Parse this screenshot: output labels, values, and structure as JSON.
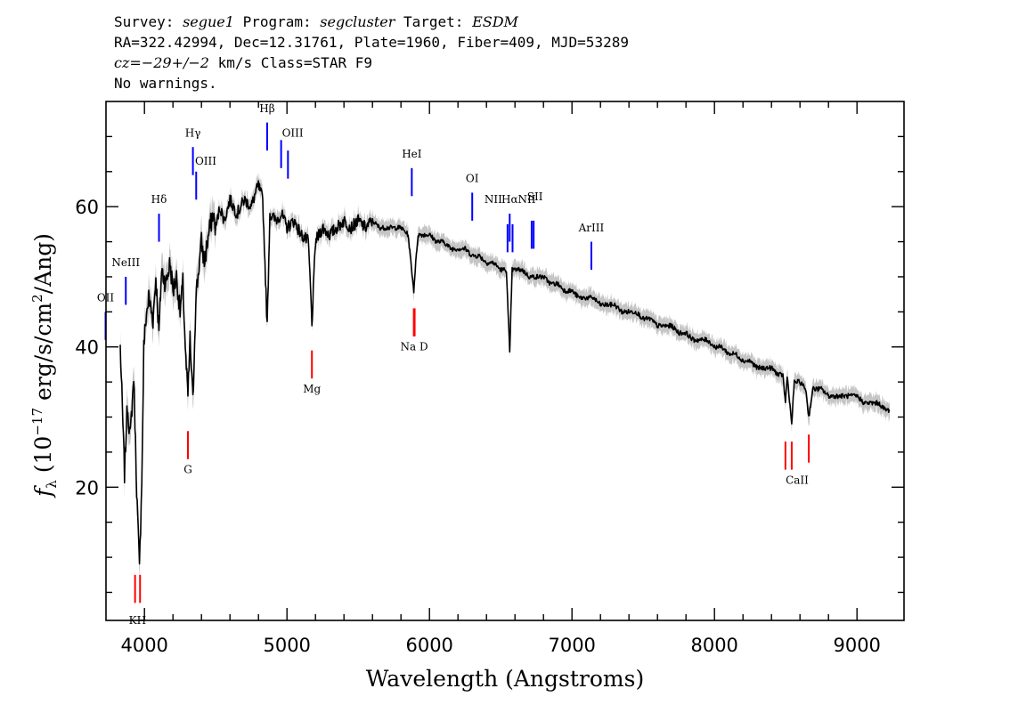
{
  "header": {
    "line1": {
      "survey_label": "Survey:",
      "survey": "segue1",
      "program_label": "Program:",
      "program": "segcluster",
      "target_label": "Target:",
      "target": "ESDM"
    },
    "line2": "RA=322.42994, Dec=12.31761, Plate=1960, Fiber=409, MJD=53289",
    "line3": {
      "cz_value": "cz=−29+/−2",
      "cz_rest": " km/s Class=STAR F9"
    },
    "line4": "No warnings."
  },
  "chart_data": {
    "type": "line",
    "xlabel": "Wavelength (Angstroms)",
    "ylabel": "f_λ (10^-17 erg/s/cm²/Ang)",
    "ylabel_parts": {
      "f": "f",
      "sub": "λ",
      "pre": "(10",
      "exp": "−17",
      "mid": " erg/s/cm",
      "exp2": "2",
      "post": "/Ang)"
    },
    "xlim": [
      3730,
      9330
    ],
    "ylim": [
      1,
      75
    ],
    "x_ticks": [
      4000,
      5000,
      6000,
      7000,
      8000,
      9000
    ],
    "y_ticks": [
      20,
      40,
      60
    ],
    "grid": false,
    "series": [
      {
        "color": "#000000",
        "error_color": "#bfbfbf",
        "points": [
          [
            3830,
            40
          ],
          [
            3860,
            22
          ],
          [
            3880,
            32
          ],
          [
            3900,
            27
          ],
          [
            3925,
            36
          ],
          [
            3945,
            20
          ],
          [
            3965,
            8
          ],
          [
            3985,
            25
          ],
          [
            3995,
            40
          ],
          [
            4010,
            44
          ],
          [
            4030,
            47
          ],
          [
            4060,
            44
          ],
          [
            4080,
            50
          ],
          [
            4102,
            42
          ],
          [
            4120,
            51
          ],
          [
            4150,
            49
          ],
          [
            4180,
            52
          ],
          [
            4200,
            48
          ],
          [
            4225,
            50
          ],
          [
            4250,
            45
          ],
          [
            4270,
            49
          ],
          [
            4290,
            38
          ],
          [
            4305,
            33
          ],
          [
            4320,
            41
          ],
          [
            4340,
            32
          ],
          [
            4360,
            47
          ],
          [
            4380,
            51
          ],
          [
            4400,
            55
          ],
          [
            4420,
            52
          ],
          [
            4450,
            56
          ],
          [
            4480,
            59
          ],
          [
            4500,
            57
          ],
          [
            4530,
            60
          ],
          [
            4560,
            58
          ],
          [
            4600,
            61
          ],
          [
            4650,
            59
          ],
          [
            4700,
            61
          ],
          [
            4750,
            60
          ],
          [
            4780,
            62
          ],
          [
            4800,
            63
          ],
          [
            4830,
            61
          ],
          [
            4861,
            43
          ],
          [
            4880,
            59
          ],
          [
            4920,
            58
          ],
          [
            4960,
            59
          ],
          [
            5000,
            57
          ],
          [
            5050,
            58
          ],
          [
            5100,
            56
          ],
          [
            5150,
            55
          ],
          [
            5168,
            47
          ],
          [
            5175,
            43
          ],
          [
            5185,
            48
          ],
          [
            5200,
            55
          ],
          [
            5250,
            57
          ],
          [
            5300,
            56
          ],
          [
            5350,
            57
          ],
          [
            5400,
            58
          ],
          [
            5450,
            57
          ],
          [
            5500,
            58
          ],
          [
            5550,
            57
          ],
          [
            5600,
            58
          ],
          [
            5650,
            57
          ],
          [
            5700,
            57
          ],
          [
            5750,
            57
          ],
          [
            5800,
            57
          ],
          [
            5850,
            56
          ],
          [
            5890,
            48
          ],
          [
            5896,
            50
          ],
          [
            5920,
            56
          ],
          [
            5950,
            56
          ],
          [
            6000,
            56
          ],
          [
            6050,
            55
          ],
          [
            6100,
            55
          ],
          [
            6150,
            54
          ],
          [
            6200,
            54
          ],
          [
            6250,
            54
          ],
          [
            6300,
            53
          ],
          [
            6350,
            53
          ],
          [
            6400,
            52
          ],
          [
            6450,
            52
          ],
          [
            6500,
            51
          ],
          [
            6540,
            51
          ],
          [
            6563,
            39
          ],
          [
            6580,
            51
          ],
          [
            6600,
            51
          ],
          [
            6650,
            51
          ],
          [
            6700,
            50
          ],
          [
            6750,
            50
          ],
          [
            6800,
            50
          ],
          [
            6850,
            49
          ],
          [
            6900,
            49
          ],
          [
            6950,
            48
          ],
          [
            7000,
            48
          ],
          [
            7050,
            47
          ],
          [
            7100,
            47
          ],
          [
            7150,
            47
          ],
          [
            7200,
            46
          ],
          [
            7250,
            46
          ],
          [
            7300,
            46
          ],
          [
            7350,
            45
          ],
          [
            7400,
            45
          ],
          [
            7450,
            45
          ],
          [
            7500,
            44
          ],
          [
            7550,
            44
          ],
          [
            7600,
            43
          ],
          [
            7650,
            43
          ],
          [
            7700,
            43
          ],
          [
            7750,
            42
          ],
          [
            7800,
            42
          ],
          [
            7850,
            41
          ],
          [
            7900,
            41
          ],
          [
            7950,
            41
          ],
          [
            8000,
            40
          ],
          [
            8050,
            40
          ],
          [
            8100,
            39
          ],
          [
            8150,
            39
          ],
          [
            8200,
            38
          ],
          [
            8250,
            38
          ],
          [
            8300,
            37
          ],
          [
            8350,
            37
          ],
          [
            8400,
            37
          ],
          [
            8450,
            36
          ],
          [
            8480,
            36
          ],
          [
            8498,
            32
          ],
          [
            8510,
            36
          ],
          [
            8542,
            29
          ],
          [
            8560,
            35
          ],
          [
            8600,
            35
          ],
          [
            8640,
            34
          ],
          [
            8662,
            30
          ],
          [
            8690,
            34
          ],
          [
            8750,
            34
          ],
          [
            8800,
            33
          ],
          [
            8850,
            33
          ],
          [
            8900,
            33
          ],
          [
            8950,
            33
          ],
          [
            9000,
            33
          ],
          [
            9050,
            32
          ],
          [
            9100,
            32
          ],
          [
            9150,
            32
          ],
          [
            9200,
            31
          ],
          [
            9230,
            31
          ]
        ]
      }
    ],
    "emission_lines": [
      {
        "name": "OII",
        "x": 3727,
        "y_top": 45,
        "y_bot": 41
      },
      {
        "name": "NeIII",
        "x": 3869,
        "y_top": 50,
        "y_bot": 46
      },
      {
        "name": "Hδ",
        "x": 4102,
        "y_top": 59,
        "y_bot": 55
      },
      {
        "name": "Hγ",
        "x": 4340,
        "y_top": 68.5,
        "y_bot": 64.5
      },
      {
        "name": "OIII",
        "x": 4363,
        "y_top": 65,
        "y_bot": 61
      },
      {
        "name": "Hβ",
        "x": 4861,
        "y_top": 72,
        "y_bot": 68
      },
      {
        "name": "OIII",
        "x": 4959,
        "y_top": 69.5,
        "y_bot": 65.5
      },
      {
        "name": "OIII",
        "x": 5007,
        "y_top": 68,
        "y_bot": 64
      },
      {
        "name": "HeI",
        "x": 5876,
        "y_top": 65.5,
        "y_bot": 61.5
      },
      {
        "name": "OI",
        "x": 6300,
        "y_top": 62,
        "y_bot": 58
      },
      {
        "name": "NII",
        "x": 6548,
        "y_top": 57.5,
        "y_bot": 53.5
      },
      {
        "name": "Hα",
        "x": 6563,
        "y_top": 59,
        "y_bot": 55
      },
      {
        "name": "NII",
        "x": 6583,
        "y_top": 57.5,
        "y_bot": 53.5
      },
      {
        "name": "SII",
        "x": 6717,
        "y_top": 58,
        "y_bot": 54
      },
      {
        "name": "SII",
        "x": 6731,
        "y_top": 58,
        "y_bot": 54
      },
      {
        "name": "ArIII",
        "x": 7136,
        "y_top": 55,
        "y_bot": 51
      }
    ],
    "absorption_lines": [
      {
        "name": "K",
        "x": 3934,
        "y_top": 7.5,
        "y_bot": 3.5
      },
      {
        "name": "H",
        "x": 3969,
        "y_top": 7.5,
        "y_bot": 3.5
      },
      {
        "name": "G",
        "x": 4305,
        "y_top": 28,
        "y_bot": 24
      },
      {
        "name": "Mg",
        "x": 5175,
        "y_top": 39.5,
        "y_bot": 35.5
      },
      {
        "name": "Na",
        "x": 5890,
        "y_top": 45.5,
        "y_bot": 41.5
      },
      {
        "name": "D",
        "x": 5896,
        "y_top": 45.5,
        "y_bot": 41.5
      },
      {
        "name": "CaII",
        "x": 8498,
        "y_top": 26.5,
        "y_bot": 22.5
      },
      {
        "name": "CaII",
        "x": 8542,
        "y_top": 26.5,
        "y_bot": 22.5
      },
      {
        "name": "CaII",
        "x": 8662,
        "y_top": 27.5,
        "y_bot": 23.5
      }
    ],
    "line_labels": [
      {
        "text": "OII",
        "x": 3727,
        "y": 46.5,
        "kind": "emission"
      },
      {
        "text": "NeIII",
        "x": 3869,
        "y": 51.5,
        "kind": "emission"
      },
      {
        "text": "Hδ",
        "x": 4102,
        "y": 60.5,
        "kind": "emission"
      },
      {
        "text": "Hγ",
        "x": 4340,
        "y": 70,
        "kind": "emission"
      },
      {
        "text": "OIII",
        "x": 4430,
        "y": 66,
        "kind": "emission"
      },
      {
        "text": "Hβ",
        "x": 4861,
        "y": 73.5,
        "kind": "emission"
      },
      {
        "text": "OIII",
        "x": 5040,
        "y": 70,
        "kind": "emission"
      },
      {
        "text": "HeI",
        "x": 5876,
        "y": 67,
        "kind": "emission"
      },
      {
        "text": "OI",
        "x": 6300,
        "y": 63.5,
        "kind": "emission"
      },
      {
        "text": "NII",
        "x": 6448,
        "y": 60.5,
        "kind": "emission"
      },
      {
        "text": "Hα",
        "x": 6563,
        "y": 60.5,
        "kind": "emission"
      },
      {
        "text": "NII",
        "x": 6683,
        "y": 60.5,
        "kind": "emission"
      },
      {
        "text": "SII",
        "x": 6740,
        "y": 60.9,
        "kind": "emission"
      },
      {
        "text": "ArIII",
        "x": 7136,
        "y": 56.5,
        "kind": "emission"
      },
      {
        "text": "KH",
        "x": 3951,
        "y": 0.5,
        "kind": "absorption"
      },
      {
        "text": "G",
        "x": 4305,
        "y": 22,
        "kind": "absorption"
      },
      {
        "text": "Mg",
        "x": 5175,
        "y": 33.5,
        "kind": "absorption"
      },
      {
        "text": "Na  D",
        "x": 5893,
        "y": 39.5,
        "kind": "absorption"
      },
      {
        "text": "CaII",
        "x": 8580,
        "y": 20.5,
        "kind": "absorption"
      }
    ],
    "colors": {
      "emission": "#0000ff",
      "absorption": "#ff0000"
    }
  }
}
